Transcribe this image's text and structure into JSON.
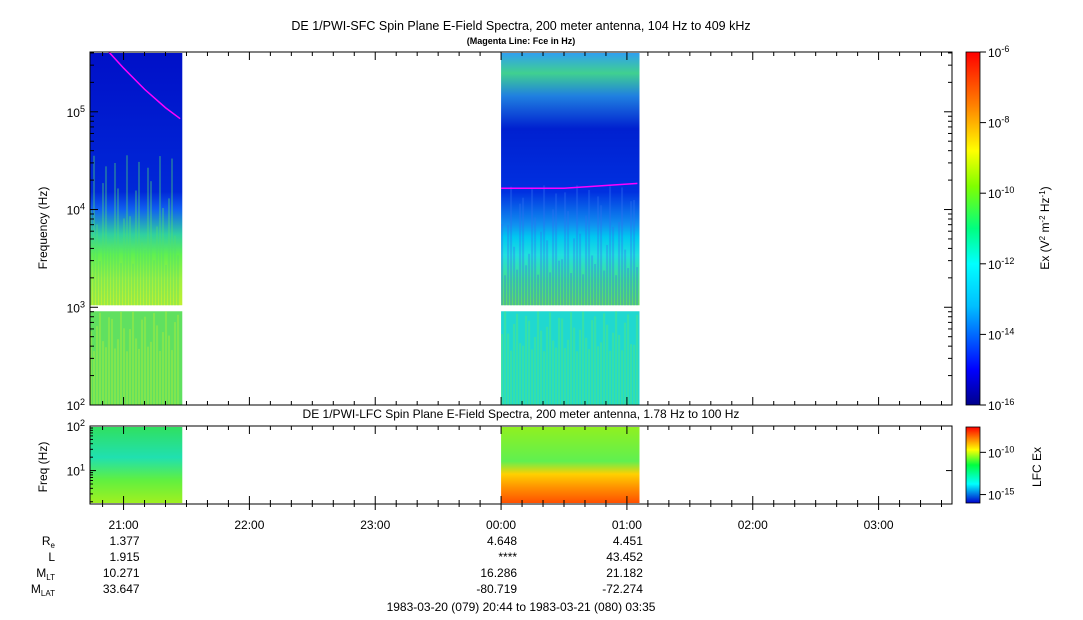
{
  "chart_data": [
    {
      "type": "heatmap",
      "title": "DE 1/PWI-SFC  Spin Plane E-Field Spectra, 200 meter antenna, 104 Hz to 409 kHz",
      "subtitle": "(Magenta Line: Fce in Hz)",
      "ylabel": "Frequency (Hz)",
      "yscale": "log",
      "ylim": [
        100,
        409000
      ],
      "y_ticks": [
        {
          "value": 100,
          "base": "10",
          "exp": "2"
        },
        {
          "value": 1000,
          "base": "10",
          "exp": "3"
        },
        {
          "value": 10000,
          "base": "10",
          "exp": "4"
        },
        {
          "value": 100000,
          "base": "10",
          "exp": "5"
        }
      ],
      "colorbar": {
        "label_main": "Ex (V",
        "label_sup1": "2",
        "label_mid": " m",
        "label_sup2": "-2",
        "label_mid2": " Hz",
        "label_sup3": "-1",
        "label_end": ")",
        "scale": "log",
        "range": [
          1e-16,
          1e-06
        ],
        "colormap": "rainbow",
        "ticks": [
          {
            "value": 1e-06,
            "base": "10",
            "exp": "-6"
          },
          {
            "value": 1e-08,
            "base": "10",
            "exp": "-8"
          },
          {
            "value": 1e-10,
            "base": "10",
            "exp": "-10"
          },
          {
            "value": 1e-12,
            "base": "10",
            "exp": "-12"
          },
          {
            "value": 1e-14,
            "base": "10",
            "exp": "-14"
          },
          {
            "value": 1e-16,
            "base": "10",
            "exp": "-16"
          }
        ]
      },
      "data_segments": [
        {
          "start": "20:44",
          "end": "21:28"
        },
        {
          "start": "00:00",
          "end": "01:06"
        }
      ],
      "fce_series_color": "#ff00ff",
      "fce_series": [
        {
          "t": "20:53",
          "hz": 409000
        },
        {
          "t": "21:00",
          "hz": 280000
        },
        {
          "t": "21:10",
          "hz": 170000
        },
        {
          "t": "21:20",
          "hz": 110000
        },
        {
          "t": "21:27",
          "hz": 85000
        },
        {
          "t": "00:00",
          "hz": 16500
        },
        {
          "t": "00:30",
          "hz": 16500
        },
        {
          "t": "01:05",
          "hz": 18500
        }
      ]
    },
    {
      "type": "heatmap",
      "title": "DE 1/PWI-LFC  Spin Plane E-Field Spectra, 200 meter antenna, 1.78 Hz to 100 Hz",
      "ylabel": "Freq (Hz)",
      "yscale": "log",
      "ylim": [
        1.78,
        100
      ],
      "y_ticks": [
        {
          "value": 100,
          "base": "10",
          "exp": "2"
        },
        {
          "value": 10,
          "base": "10",
          "exp": "1"
        }
      ],
      "colorbar": {
        "label": "LFC Ex",
        "scale": "log",
        "range": [
          1e-16,
          1e-07
        ],
        "colormap": "rainbow",
        "ticks": [
          {
            "value": 1e-10,
            "base": "10",
            "exp": "-10"
          },
          {
            "value": 1e-15,
            "base": "10",
            "exp": "-15"
          }
        ]
      },
      "data_segments": [
        {
          "start": "20:44",
          "end": "21:28"
        },
        {
          "start": "00:00",
          "end": "01:06"
        }
      ]
    }
  ],
  "time_axis": {
    "range": [
      "20:44",
      "03:35"
    ],
    "ticks": [
      "21:00",
      "22:00",
      "23:00",
      "00:00",
      "01:00",
      "02:00",
      "03:00"
    ]
  },
  "ephemeris": {
    "rows": [
      {
        "label": "R",
        "sub": "e",
        "values": [
          "1.377",
          "4.648",
          "4.451"
        ]
      },
      {
        "label": "L",
        "sub": "",
        "values": [
          "1.915",
          "****",
          "43.452"
        ]
      },
      {
        "label": "M",
        "sub": "LT",
        "values": [
          "10.271",
          "16.286",
          "21.182"
        ]
      },
      {
        "label": "M",
        "sub": "LAT",
        "values": [
          "33.647",
          "-80.719",
          "-72.274"
        ]
      }
    ],
    "columns": [
      "21:00",
      "00:00",
      "01:00"
    ]
  },
  "date_range": "1983-03-20 (079) 20:44 to 1983-03-21 (080) 03:35"
}
